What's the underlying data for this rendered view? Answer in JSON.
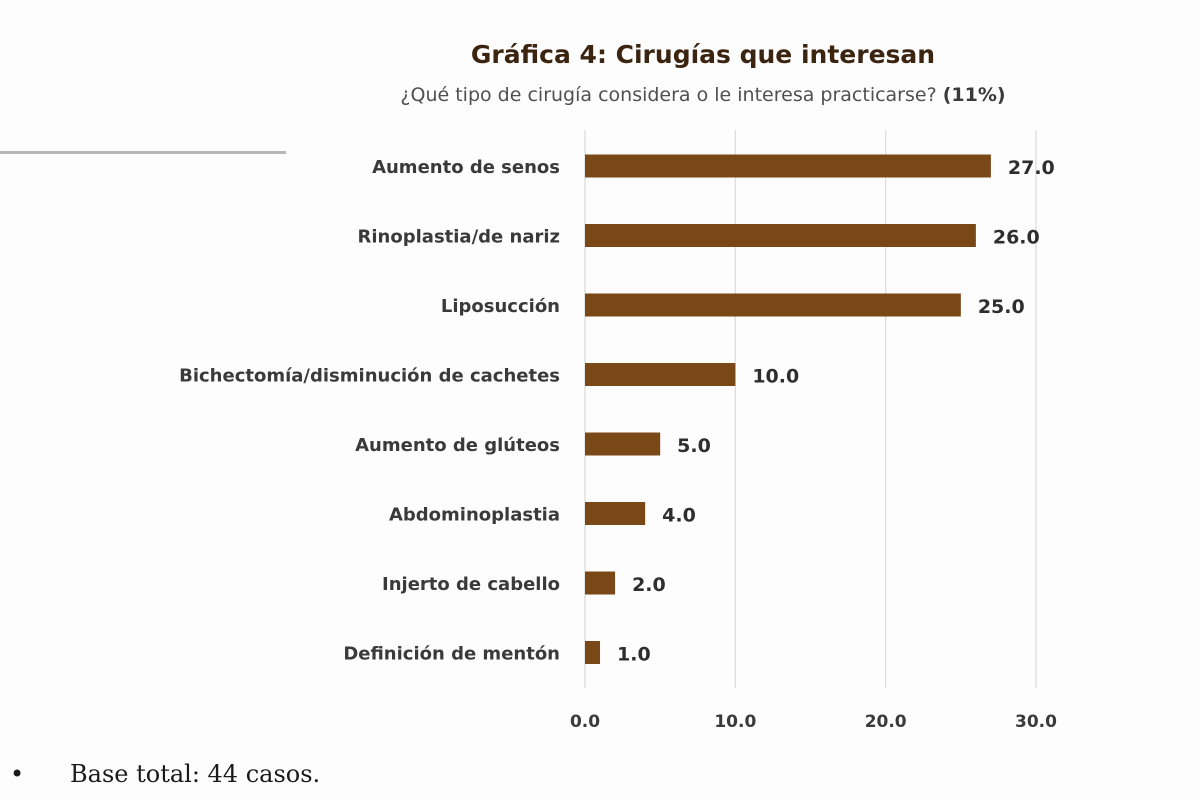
{
  "chart_data": {
    "type": "bar",
    "orientation": "horizontal",
    "title": "Gráfica 4: Cirugías que interesan",
    "subtitle": "¿Qué tipo de cirugía  considera o le interesa practicarse?",
    "subtitle_highlight": "(11%)",
    "categories": [
      "Aumento de senos",
      "Rinoplastia/de nariz",
      "Liposucción",
      "Bichectomía/disminución de cachetes",
      "Aumento de glúteos",
      "Abdominoplastia",
      "Injerto de cabello",
      "Definición de mentón"
    ],
    "values": [
      27.0,
      26.0,
      25.0,
      10.0,
      5.0,
      4.0,
      2.0,
      1.0
    ],
    "data_labels": [
      "27.0",
      "26.0",
      "25.0",
      "10.0",
      "5.0",
      "4.0",
      "2.0",
      "1.0"
    ],
    "xlim": [
      0,
      30
    ],
    "xticks": [
      "0.0",
      "10.0",
      "20.0",
      "30.0"
    ],
    "grid": true,
    "bar_color": "#7a4716",
    "grid_color": "#d9d9d9"
  },
  "footnote": {
    "bullet": "•",
    "text": "Base total: 44 casos."
  }
}
